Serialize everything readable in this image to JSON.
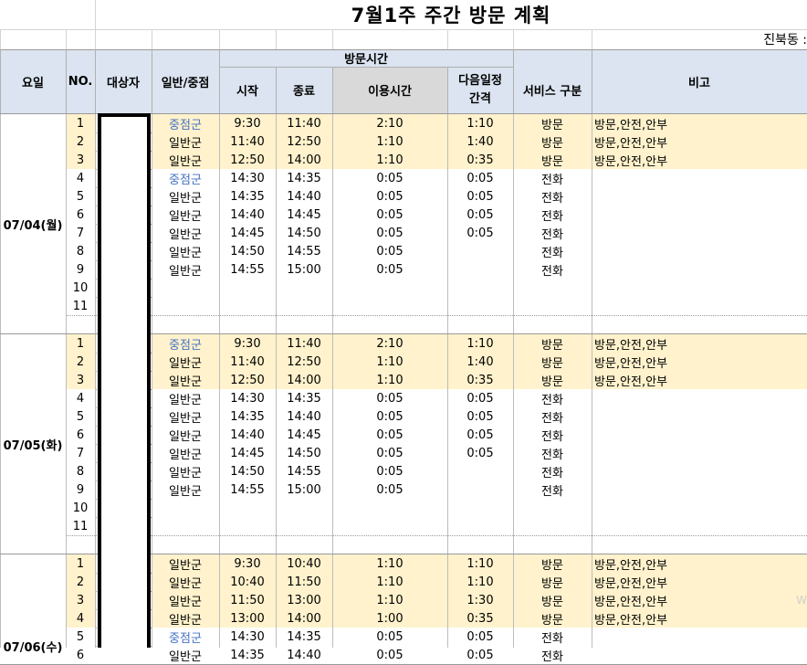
{
  "sheet": {
    "title": "7월1주 주간 방문 계획",
    "region_label": "진북동 :",
    "headers": {
      "day": "요일",
      "no": "NO.",
      "target": "대상자",
      "type": "일반/중점",
      "visit_time": "방문시간",
      "start": "시작",
      "end": "종료",
      "duration": "이용시간",
      "interval_l1": "다음일정",
      "interval_l2": "간격",
      "service": "서비스 구분",
      "note": "비고"
    },
    "days": [
      {
        "label": "07/04(월)",
        "rows": [
          {
            "no": "1",
            "type": "중점군",
            "start": "9:30",
            "end": "11:40",
            "dur": "2:10",
            "int": "1:10",
            "svc": "방문",
            "note": "방문,안전,안부"
          },
          {
            "no": "2",
            "type": "일반군",
            "start": "11:40",
            "end": "12:50",
            "dur": "1:10",
            "int": "1:40",
            "svc": "방문",
            "note": "방문,안전,안부"
          },
          {
            "no": "3",
            "type": "일반군",
            "start": "12:50",
            "end": "14:00",
            "dur": "1:10",
            "int": "0:35",
            "svc": "방문",
            "note": "방문,안전,안부"
          },
          {
            "no": "4",
            "type": "중점군",
            "start": "14:30",
            "end": "14:35",
            "dur": "0:05",
            "int": "0:05",
            "svc": "전화",
            "note": ""
          },
          {
            "no": "5",
            "type": "일반군",
            "start": "14:35",
            "end": "14:40",
            "dur": "0:05",
            "int": "0:05",
            "svc": "전화",
            "note": ""
          },
          {
            "no": "6",
            "type": "일반군",
            "start": "14:40",
            "end": "14:45",
            "dur": "0:05",
            "int": "0:05",
            "svc": "전화",
            "note": ""
          },
          {
            "no": "7",
            "type": "일반군",
            "start": "14:45",
            "end": "14:50",
            "dur": "0:05",
            "int": "0:05",
            "svc": "전화",
            "note": ""
          },
          {
            "no": "8",
            "type": "일반군",
            "start": "14:50",
            "end": "14:55",
            "dur": "0:05",
            "int": "",
            "svc": "전화",
            "note": ""
          },
          {
            "no": "9",
            "type": "일반군",
            "start": "14:55",
            "end": "15:00",
            "dur": "0:05",
            "int": "",
            "svc": "전화",
            "note": ""
          },
          {
            "no": "10",
            "type": "",
            "start": "",
            "end": "",
            "dur": "",
            "int": "",
            "svc": "",
            "note": ""
          },
          {
            "no": "11",
            "type": "",
            "start": "",
            "end": "",
            "dur": "",
            "int": "",
            "svc": "",
            "note": ""
          }
        ]
      },
      {
        "label": "07/05(화)",
        "rows": [
          {
            "no": "1",
            "type": "중점군",
            "start": "9:30",
            "end": "11:40",
            "dur": "2:10",
            "int": "1:10",
            "svc": "방문",
            "note": "방문,안전,안부"
          },
          {
            "no": "2",
            "type": "일반군",
            "start": "11:40",
            "end": "12:50",
            "dur": "1:10",
            "int": "1:40",
            "svc": "방문",
            "note": "방문,안전,안부"
          },
          {
            "no": "3",
            "type": "일반군",
            "start": "12:50",
            "end": "14:00",
            "dur": "1:10",
            "int": "0:35",
            "svc": "방문",
            "note": "방문,안전,안부"
          },
          {
            "no": "4",
            "type": "일반군",
            "start": "14:30",
            "end": "14:35",
            "dur": "0:05",
            "int": "0:05",
            "svc": "전화",
            "note": ""
          },
          {
            "no": "5",
            "type": "일반군",
            "start": "14:35",
            "end": "14:40",
            "dur": "0:05",
            "int": "0:05",
            "svc": "전화",
            "note": ""
          },
          {
            "no": "6",
            "type": "일반군",
            "start": "14:40",
            "end": "14:45",
            "dur": "0:05",
            "int": "0:05",
            "svc": "전화",
            "note": ""
          },
          {
            "no": "7",
            "type": "일반군",
            "start": "14:45",
            "end": "14:50",
            "dur": "0:05",
            "int": "0:05",
            "svc": "전화",
            "note": ""
          },
          {
            "no": "8",
            "type": "일반군",
            "start": "14:50",
            "end": "14:55",
            "dur": "0:05",
            "int": "",
            "svc": "전화",
            "note": ""
          },
          {
            "no": "9",
            "type": "일반군",
            "start": "14:55",
            "end": "15:00",
            "dur": "0:05",
            "int": "",
            "svc": "전화",
            "note": ""
          },
          {
            "no": "10",
            "type": "",
            "start": "",
            "end": "",
            "dur": "",
            "int": "",
            "svc": "",
            "note": ""
          },
          {
            "no": "11",
            "type": "",
            "start": "",
            "end": "",
            "dur": "",
            "int": "",
            "svc": "",
            "note": ""
          }
        ]
      },
      {
        "label": "07/06(수)",
        "rows": [
          {
            "no": "1",
            "type": "일반군",
            "start": "9:30",
            "end": "10:40",
            "dur": "1:10",
            "int": "1:10",
            "svc": "방문",
            "note": "방문,안전,안부"
          },
          {
            "no": "2",
            "type": "일반군",
            "start": "10:40",
            "end": "11:50",
            "dur": "1:10",
            "int": "1:10",
            "svc": "방문",
            "note": "방문,안전,안부"
          },
          {
            "no": "3",
            "type": "일반군",
            "start": "11:50",
            "end": "13:00",
            "dur": "1:10",
            "int": "1:30",
            "svc": "방문",
            "note": "방문,안전,안부"
          },
          {
            "no": "4",
            "type": "일반군",
            "start": "13:00",
            "end": "14:00",
            "dur": "1:00",
            "int": "0:35",
            "svc": "방문",
            "note": "방문,안전,안부"
          },
          {
            "no": "5",
            "type": "중점군",
            "start": "14:30",
            "end": "14:35",
            "dur": "0:05",
            "int": "0:05",
            "svc": "전화",
            "note": ""
          },
          {
            "no": "6",
            "type": "일반군",
            "start": "14:35",
            "end": "14:40",
            "dur": "0:05",
            "int": "0:05",
            "svc": "전화",
            "note": ""
          }
        ]
      }
    ],
    "colors": {
      "header_bg": "#dbe4f0",
      "header_gray": "#d9d9d9",
      "visit_row_bg": "#fff2cc",
      "priority_text": "#4472c4",
      "grid": "#d4d4d4"
    }
  }
}
